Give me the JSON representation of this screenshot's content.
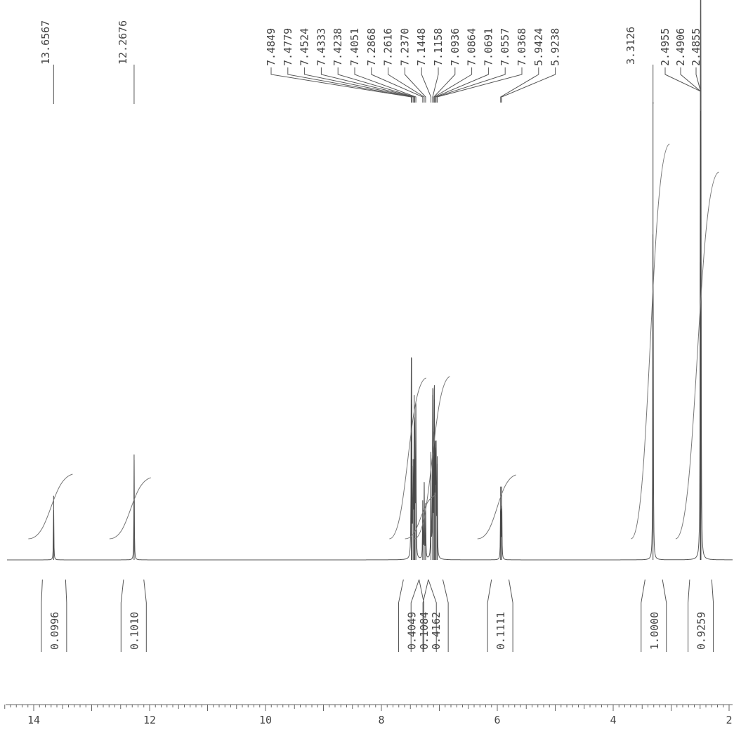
{
  "chart_data": {
    "type": "line",
    "x_axis": {
      "range": [
        14.6,
        1.6
      ],
      "reversed": true,
      "tick_labels": [
        "14",
        "12",
        "10",
        "8",
        "6",
        "4",
        "2"
      ],
      "tick_values": [
        14,
        12,
        10,
        8,
        6,
        4,
        2
      ]
    },
    "peak_labels": [
      "13.6567",
      "12.2676",
      "7.4849",
      "7.4779",
      "7.4524",
      "7.4333",
      "7.4238",
      "7.4051",
      "7.2868",
      "7.2616",
      "7.2370",
      "7.1448",
      "7.1158",
      "7.0936",
      "7.0864",
      "7.0691",
      "7.0557",
      "7.0368",
      "5.9424",
      "5.9238",
      "3.3126",
      "2.4955",
      "2.4906",
      "2.4855"
    ],
    "spectrum_peaks": [
      {
        "ppm": 13.6567,
        "height": 0.14
      },
      {
        "ppm": 12.2676,
        "height": 0.23
      },
      {
        "ppm": 7.4849,
        "height": 0.35
      },
      {
        "ppm": 7.4779,
        "height": 0.34
      },
      {
        "ppm": 7.4524,
        "height": 0.22
      },
      {
        "ppm": 7.4333,
        "height": 0.36
      },
      {
        "ppm": 7.4238,
        "height": 0.22
      },
      {
        "ppm": 7.4051,
        "height": 0.34
      },
      {
        "ppm": 7.2868,
        "height": 0.13
      },
      {
        "ppm": 7.2616,
        "height": 0.17
      },
      {
        "ppm": 7.237,
        "height": 0.12
      },
      {
        "ppm": 7.1448,
        "height": 0.23
      },
      {
        "ppm": 7.1158,
        "height": 0.36
      },
      {
        "ppm": 7.0936,
        "height": 0.28
      },
      {
        "ppm": 7.0864,
        "height": 0.35
      },
      {
        "ppm": 7.0691,
        "height": 0.26
      },
      {
        "ppm": 7.0557,
        "height": 0.24
      },
      {
        "ppm": 7.0368,
        "height": 0.21
      },
      {
        "ppm": 5.9424,
        "height": 0.16
      },
      {
        "ppm": 5.9238,
        "height": 0.16
      },
      {
        "ppm": 3.3126,
        "height": 1.0
      },
      {
        "ppm": 2.4955,
        "height": 0.65
      },
      {
        "ppm": 2.4906,
        "height": 0.98
      },
      {
        "ppm": 2.4855,
        "height": 0.65
      }
    ],
    "integrals": [
      {
        "label": "0.0996",
        "from": 13.85,
        "to": 13.45
      },
      {
        "label": "0.1010",
        "from": 12.45,
        "to": 12.1
      },
      {
        "label": "0.4049",
        "from": 7.62,
        "to": 7.35
      },
      {
        "label": "0.1084",
        "from": 7.35,
        "to": 7.19
      },
      {
        "label": "0.4162",
        "from": 7.19,
        "to": 6.94
      },
      {
        "label": "0.1111",
        "from": 6.1,
        "to": 5.8
      },
      {
        "label": "1.0000",
        "from": 3.45,
        "to": 3.15
      },
      {
        "label": "0.9259",
        "from": 2.68,
        "to": 2.3
      }
    ],
    "grid": false
  }
}
